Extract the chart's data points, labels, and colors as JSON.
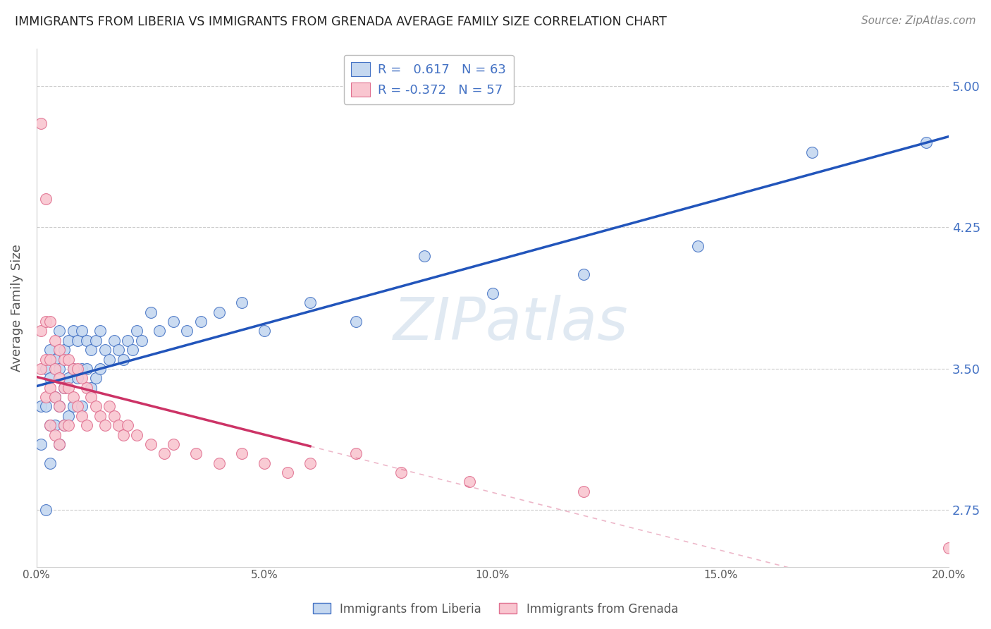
{
  "title": "IMMIGRANTS FROM LIBERIA VS IMMIGRANTS FROM GRENADA AVERAGE FAMILY SIZE CORRELATION CHART",
  "source": "Source: ZipAtlas.com",
  "ylabel": "Average Family Size",
  "xlim": [
    0.0,
    0.2
  ],
  "ylim": [
    2.45,
    5.2
  ],
  "yticks": [
    2.75,
    3.5,
    4.25,
    5.0
  ],
  "legend_blue_r": "0.617",
  "legend_blue_n": "63",
  "legend_pink_r": "-0.372",
  "legend_pink_n": "57",
  "legend_blue_label": "Immigrants from Liberia",
  "legend_pink_label": "Immigrants from Grenada",
  "blue_fill_color": "#c5d8f0",
  "pink_fill_color": "#f9c6d0",
  "blue_edge_color": "#4472c4",
  "pink_edge_color": "#e07090",
  "blue_line_color": "#2255bb",
  "pink_line_color": "#cc3366",
  "text_blue_color": "#4472c4",
  "blue_x": [
    0.001,
    0.001,
    0.002,
    0.002,
    0.002,
    0.003,
    0.003,
    0.003,
    0.003,
    0.004,
    0.004,
    0.004,
    0.005,
    0.005,
    0.005,
    0.005,
    0.006,
    0.006,
    0.006,
    0.007,
    0.007,
    0.007,
    0.008,
    0.008,
    0.008,
    0.009,
    0.009,
    0.01,
    0.01,
    0.01,
    0.011,
    0.011,
    0.012,
    0.012,
    0.013,
    0.013,
    0.014,
    0.014,
    0.015,
    0.016,
    0.017,
    0.018,
    0.019,
    0.02,
    0.021,
    0.022,
    0.023,
    0.025,
    0.027,
    0.03,
    0.033,
    0.036,
    0.04,
    0.045,
    0.05,
    0.06,
    0.07,
    0.085,
    0.1,
    0.12,
    0.145,
    0.17,
    0.195
  ],
  "blue_y": [
    3.3,
    3.1,
    3.5,
    3.3,
    2.75,
    3.6,
    3.45,
    3.2,
    3.0,
    3.55,
    3.35,
    3.2,
    3.7,
    3.5,
    3.3,
    3.1,
    3.6,
    3.4,
    3.2,
    3.65,
    3.45,
    3.25,
    3.7,
    3.5,
    3.3,
    3.65,
    3.45,
    3.7,
    3.5,
    3.3,
    3.65,
    3.5,
    3.6,
    3.4,
    3.65,
    3.45,
    3.7,
    3.5,
    3.6,
    3.55,
    3.65,
    3.6,
    3.55,
    3.65,
    3.6,
    3.7,
    3.65,
    3.8,
    3.7,
    3.75,
    3.7,
    3.75,
    3.8,
    3.85,
    3.7,
    3.85,
    3.75,
    4.1,
    3.9,
    4.0,
    4.15,
    4.65,
    4.7
  ],
  "pink_x": [
    0.001,
    0.001,
    0.001,
    0.002,
    0.002,
    0.002,
    0.002,
    0.003,
    0.003,
    0.003,
    0.003,
    0.004,
    0.004,
    0.004,
    0.004,
    0.005,
    0.005,
    0.005,
    0.005,
    0.006,
    0.006,
    0.006,
    0.007,
    0.007,
    0.007,
    0.008,
    0.008,
    0.009,
    0.009,
    0.01,
    0.01,
    0.011,
    0.011,
    0.012,
    0.013,
    0.014,
    0.015,
    0.016,
    0.017,
    0.018,
    0.019,
    0.02,
    0.022,
    0.025,
    0.028,
    0.03,
    0.035,
    0.04,
    0.045,
    0.05,
    0.055,
    0.06,
    0.07,
    0.08,
    0.095,
    0.12,
    0.2
  ],
  "pink_y": [
    4.8,
    3.7,
    3.5,
    4.4,
    3.75,
    3.55,
    3.35,
    3.75,
    3.55,
    3.4,
    3.2,
    3.65,
    3.5,
    3.35,
    3.15,
    3.6,
    3.45,
    3.3,
    3.1,
    3.55,
    3.4,
    3.2,
    3.55,
    3.4,
    3.2,
    3.5,
    3.35,
    3.5,
    3.3,
    3.45,
    3.25,
    3.4,
    3.2,
    3.35,
    3.3,
    3.25,
    3.2,
    3.3,
    3.25,
    3.2,
    3.15,
    3.2,
    3.15,
    3.1,
    3.05,
    3.1,
    3.05,
    3.0,
    3.05,
    3.0,
    2.95,
    3.0,
    3.05,
    2.95,
    2.9,
    2.85,
    2.55
  ]
}
